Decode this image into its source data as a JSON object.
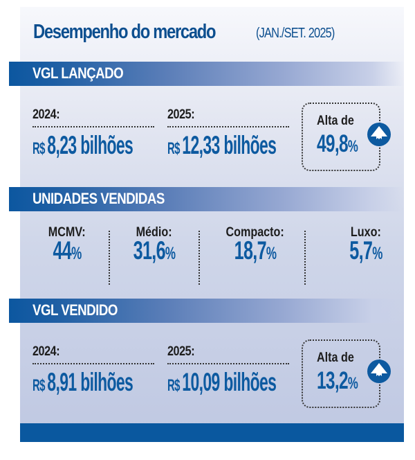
{
  "title": {
    "main": "Desempenho do mercado",
    "period": "(JAN./SET. 2025)"
  },
  "sections": {
    "vgl_lancado": {
      "heading": "VGL LANÇADO",
      "years": [
        {
          "label": "2024:",
          "currency": "R$",
          "value": "8,23 bilhões"
        },
        {
          "label": "2025:",
          "currency": "R$",
          "value": "12,33 bilhões"
        }
      ],
      "change": {
        "label": "Alta de",
        "value": "49,8",
        "unit": "%",
        "direction": "up"
      }
    },
    "unidades_vendidas": {
      "heading": "UNIDADES VENDIDAS",
      "items": [
        {
          "label": "MCMV:",
          "value": "44",
          "unit": "%"
        },
        {
          "label": "Médio:",
          "value": "31,6",
          "unit": "%"
        },
        {
          "label": "Compacto:",
          "value": "18,7",
          "unit": "%"
        },
        {
          "label": "Luxo:",
          "value": "5,7",
          "unit": "%"
        }
      ]
    },
    "vgl_vendido": {
      "heading": "VGL VENDIDO",
      "years": [
        {
          "label": "2024:",
          "currency": "R$",
          "value": "8,91 bilhões"
        },
        {
          "label": "2025:",
          "currency": "R$",
          "value": "10,09 bilhões"
        }
      ],
      "change": {
        "label": "Alta de",
        "value": "13,2",
        "unit": "%",
        "direction": "up"
      }
    }
  },
  "icons": {
    "change_up": "arrow-up-circle-icon"
  },
  "colors": {
    "brand_blue": "#0d5aa0",
    "band_blue": "#0c57a0",
    "text_dark": "#1d1d1d"
  }
}
